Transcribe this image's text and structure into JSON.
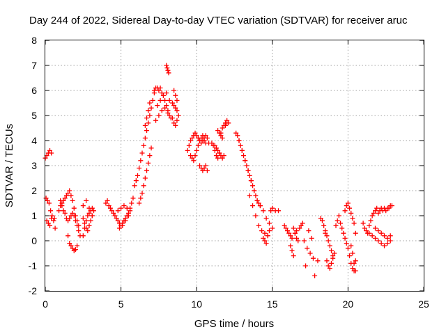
{
  "chart_data": {
    "type": "scatter",
    "title": "Day 244 of 2022, Sidereal Day-to-day VTEC variation (SDTVAR) for receiver aruc",
    "xlabel": "GPS time / hours",
    "ylabel": "SDTVAR / TECUs",
    "xlim": [
      0,
      25
    ],
    "ylim": [
      -2,
      8
    ],
    "x_ticks": [
      "0",
      "5",
      "10",
      "15",
      "20",
      "25"
    ],
    "y_ticks": [
      "-2",
      "-1",
      "0",
      "1",
      "2",
      "3",
      "4",
      "5",
      "6",
      "7",
      "8"
    ],
    "grid": true,
    "marker": "+",
    "series": [
      {
        "name": "SDTVAR",
        "color": "#ff0000",
        "x": [
          0.0,
          0.1,
          0.2,
          0.3,
          0.4,
          0.05,
          0.15,
          0.25,
          0.35,
          0.45,
          0.6,
          0.55,
          0.65,
          0.1,
          0.2,
          0.3,
          0.4,
          0.9,
          1.0,
          1.1,
          1.2,
          1.3,
          1.4,
          1.5,
          1.6,
          1.7,
          1.8,
          1.9,
          2.0,
          2.1,
          2.2,
          1.5,
          1.6,
          1.7,
          1.8,
          1.9,
          2.0,
          2.1,
          1.5,
          1.6,
          1.7,
          1.8,
          1.9,
          2.0,
          2.1,
          2.2,
          2.3,
          1.4,
          1.3,
          1.2,
          1.1,
          1.0,
          2.5,
          2.6,
          2.7,
          2.8,
          2.9,
          3.0,
          3.1,
          3.2,
          2.5,
          2.6,
          2.7,
          2.8,
          2.9,
          3.0,
          3.1,
          2.5,
          2.7,
          2.9,
          3.1,
          4.0,
          4.1,
          4.2,
          4.3,
          4.4,
          4.5,
          4.6,
          4.7,
          4.8,
          4.9,
          5.0,
          5.1,
          5.2,
          5.3,
          5.4,
          5.5,
          5.6,
          4.9,
          5.1,
          5.3,
          5.5,
          4.8,
          5.0,
          5.2,
          5.4,
          5.6,
          5.7,
          5.8,
          5.9,
          6.0,
          6.1,
          6.2,
          6.3,
          6.4,
          6.5,
          6.6,
          6.7,
          6.8,
          6.9,
          7.0,
          7.1,
          7.2,
          6.2,
          6.3,
          6.4,
          6.5,
          6.6,
          6.7,
          6.8,
          6.9,
          7.0,
          6.6,
          6.7,
          6.8,
          6.9,
          7.2,
          7.3,
          7.4,
          7.5,
          7.6,
          7.7,
          7.8,
          7.9,
          8.0,
          8.1,
          8.2,
          8.3,
          7.3,
          7.5,
          7.7,
          7.9,
          8.1,
          7.4,
          7.6,
          7.8,
          8.0,
          8.2,
          8.0,
          8.05,
          8.1,
          8.15,
          8.4,
          8.5,
          8.6,
          8.7,
          8.8,
          8.4,
          8.5,
          8.6,
          8.7,
          8.5,
          8.6,
          8.7,
          9.4,
          9.5,
          9.6,
          9.7,
          9.8,
          9.9,
          10.0,
          10.1,
          10.2,
          10.3,
          10.4,
          10.5,
          10.6,
          10.7,
          10.8,
          9.6,
          9.7,
          9.8,
          9.9,
          10.0,
          10.1,
          10.2,
          10.3,
          10.4,
          10.5,
          10.6,
          10.2,
          10.3,
          10.4,
          10.5,
          10.6,
          10.7,
          11.0,
          11.1,
          11.2,
          11.3,
          11.4,
          11.5,
          11.6,
          11.7,
          11.8,
          11.9,
          12.0,
          12.1,
          11.2,
          11.3,
          11.4,
          11.5,
          11.6,
          11.7,
          11.8,
          11.9,
          12.0,
          11.4,
          11.5,
          11.6,
          11.7,
          12.6,
          12.7,
          12.8,
          12.9,
          13.0,
          13.1,
          13.2,
          13.3,
          13.4,
          13.5,
          13.6,
          13.7,
          13.8,
          13.9,
          14.0,
          14.1,
          14.2,
          12.8,
          13.0,
          13.2,
          13.4,
          13.6,
          13.8,
          14.0,
          14.2,
          14.4,
          14.6,
          14.8,
          15.0,
          13.5,
          13.7,
          13.9,
          14.1,
          14.3,
          14.5,
          14.7,
          14.4,
          14.5,
          14.6,
          14.7,
          14.8,
          14.9,
          15.0,
          15.2,
          15.4,
          15.8,
          15.9,
          16.0,
          16.1,
          16.2,
          16.3,
          16.4,
          16.5,
          16.6,
          16.7,
          16.2,
          16.3,
          16.4,
          16.5,
          16.6,
          16.8,
          16.9,
          17.0,
          17.1,
          17.3,
          17.5,
          17.7,
          17.2,
          17.4,
          17.6,
          17.8,
          18.0,
          18.2,
          18.3,
          18.4,
          18.5,
          18.6,
          18.7,
          18.8,
          18.9,
          19.0,
          18.5,
          18.6,
          18.7,
          18.8,
          18.9,
          19.0,
          19.1,
          19.2,
          19.3,
          19.4,
          19.5,
          19.6,
          19.7,
          19.8,
          19.9,
          20.0,
          20.1,
          20.2,
          20.3,
          20.4,
          20.5,
          19.8,
          19.9,
          20.0,
          20.1,
          20.2,
          20.3,
          20.4,
          20.5,
          20.2,
          20.3,
          20.4,
          20.5,
          21.0,
          21.1,
          21.2,
          21.3,
          21.4,
          21.5,
          21.6,
          21.7,
          21.8,
          21.9,
          22.0,
          22.1,
          22.2,
          22.3,
          22.4,
          22.5,
          22.6,
          22.7,
          22.8,
          22.9,
          21.4,
          21.6,
          21.8,
          22.0,
          22.2,
          22.4,
          22.6,
          22.8,
          21.8,
          22.0,
          22.2,
          22.4,
          22.6,
          22.8
        ],
        "y": [
          3.3,
          3.4,
          3.5,
          3.6,
          3.5,
          1.7,
          1.6,
          1.5,
          1.2,
          1.0,
          0.9,
          0.8,
          0.5,
          0.8,
          0.7,
          0.6,
          0.9,
          1.2,
          1.4,
          1.5,
          1.6,
          1.7,
          1.8,
          1.9,
          2.0,
          1.8,
          1.6,
          1.3,
          1.0,
          0.8,
          0.6,
          0.2,
          -0.1,
          -0.2,
          -0.3,
          -0.4,
          -0.35,
          -0.2,
          0.8,
          0.9,
          1.0,
          1.1,
          1.0,
          0.8,
          0.6,
          0.4,
          0.2,
          0.9,
          1.1,
          1.2,
          1.4,
          1.6,
          0.2,
          0.5,
          0.8,
          1.0,
          1.1,
          1.2,
          1.3,
          1.2,
          0.9,
          0.7,
          0.5,
          0.4,
          0.6,
          0.8,
          1.0,
          1.4,
          1.6,
          1.3,
          1.0,
          1.5,
          1.6,
          1.4,
          1.3,
          1.2,
          1.1,
          1.0,
          0.9,
          0.8,
          0.7,
          0.6,
          0.7,
          0.8,
          0.9,
          1.0,
          1.1,
          1.3,
          0.5,
          0.6,
          0.8,
          1.0,
          1.2,
          1.3,
          1.4,
          1.3,
          1.2,
          1.5,
          1.7,
          2.2,
          2.4,
          2.6,
          2.9,
          3.2,
          3.5,
          3.8,
          4.1,
          4.4,
          4.7,
          5.0,
          5.3,
          5.6,
          5.9,
          1.5,
          1.7,
          1.9,
          2.2,
          2.5,
          2.8,
          3.1,
          3.4,
          3.7,
          4.6,
          4.9,
          5.2,
          5.5,
          6.0,
          6.1,
          6.1,
          6.0,
          6.1,
          5.9,
          5.8,
          5.6,
          5.4,
          5.2,
          5.0,
          4.9,
          4.8,
          5.0,
          5.2,
          5.3,
          5.1,
          5.4,
          5.6,
          5.8,
          5.9,
          5.6,
          7.0,
          6.9,
          6.8,
          6.7,
          5.5,
          5.4,
          5.3,
          5.2,
          5.0,
          4.9,
          4.7,
          4.6,
          4.8,
          6.0,
          5.8,
          5.6,
          3.6,
          3.8,
          4.0,
          4.1,
          4.2,
          4.3,
          4.2,
          4.1,
          4.0,
          3.9,
          4.0,
          4.1,
          4.2,
          4.1,
          3.9,
          3.4,
          3.3,
          3.2,
          3.4,
          3.6,
          3.8,
          4.0,
          4.1,
          4.2,
          4.0,
          3.9,
          3.0,
          2.9,
          2.8,
          2.9,
          3.0,
          2.8,
          3.9,
          3.8,
          3.6,
          3.4,
          3.3,
          3.5,
          4.3,
          4.5,
          4.6,
          4.7,
          4.8,
          4.7,
          3.8,
          3.7,
          3.6,
          3.5,
          3.4,
          3.3,
          3.4,
          4.6,
          4.7,
          4.4,
          4.3,
          4.2,
          4.1,
          4.3,
          4.2,
          4.0,
          3.8,
          3.6,
          3.4,
          3.2,
          3.0,
          2.8,
          2.6,
          2.4,
          2.2,
          2.0,
          1.8,
          1.6,
          1.5,
          1.4,
          4.0,
          3.6,
          3.2,
          2.8,
          2.4,
          2.0,
          1.6,
          1.4,
          1.2,
          0.9,
          0.7,
          0.5,
          1.8,
          1.4,
          1.0,
          0.6,
          0.4,
          0.3,
          0.2,
          0.1,
          0.0,
          -0.1,
          0.2,
          0.4,
          1.2,
          1.3,
          1.2,
          1.2,
          0.6,
          0.5,
          0.4,
          0.3,
          0.2,
          0.1,
          0.5,
          0.3,
          0.1,
          0.0,
          -0.2,
          -0.4,
          -0.6,
          0.3,
          0.4,
          0.5,
          0.6,
          0.7,
          0.0,
          -0.3,
          -0.5,
          -0.7,
          -1.0,
          0.4,
          0.1,
          -1.4,
          -0.8,
          0.9,
          0.8,
          0.6,
          0.4,
          0.2,
          0.0,
          -0.2,
          -0.4,
          -0.6,
          0.3,
          -0.8,
          -1.0,
          -1.1,
          -0.9,
          -0.7,
          -0.5,
          0.6,
          0.8,
          1.0,
          0.7,
          0.5,
          0.3,
          0.1,
          -0.1,
          -0.3,
          -0.6,
          -0.9,
          -1.1,
          -1.2,
          -0.8,
          1.2,
          1.4,
          1.5,
          1.3,
          1.1,
          0.9,
          0.7,
          0.3,
          -0.2,
          -0.5,
          -0.9,
          -1.2,
          0.7,
          0.5,
          0.4,
          0.3,
          0.6,
          0.8,
          1.0,
          1.1,
          1.2,
          1.3,
          1.1,
          1.2,
          1.3,
          1.2,
          1.3,
          1.2,
          1.3,
          1.3,
          1.4,
          1.4,
          0.3,
          0.2,
          0.1,
          0.0,
          -0.1,
          -0.2,
          -0.1,
          0.0,
          0.5,
          0.4,
          0.3,
          0.2,
          0.1,
          0.2
        ]
      }
    ]
  }
}
